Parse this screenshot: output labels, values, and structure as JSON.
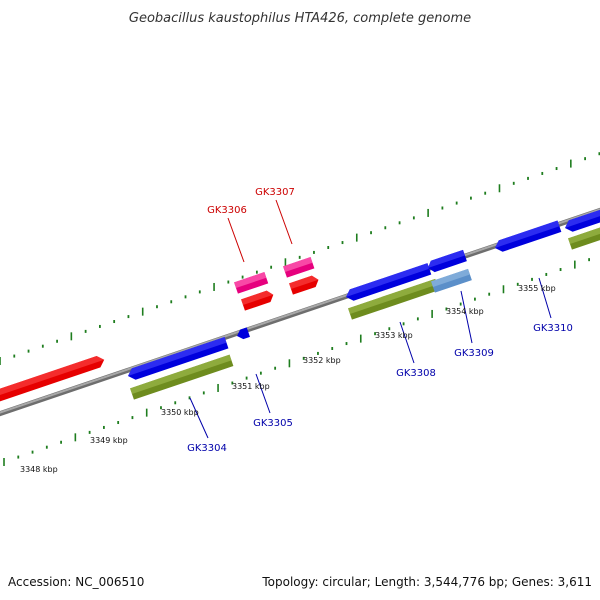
{
  "title": "Geobacillus kaustophilus HTA426, complete genome",
  "footer": {
    "accession": "Accession: NC_006510",
    "summary": "Topology: circular; Length: 3,544,776 bp; Genes: 3,611"
  },
  "colors": {
    "backbone": "#8a8a8a",
    "ticks": "#1e7d1e",
    "forward_gene": "#e60000",
    "forward_rna": "#e6007e",
    "reverse_gene": "#0000dd",
    "reverse_cds": "#6e8c1e",
    "reverse_light": "#5b8fc9",
    "forward_label": "#cc0000",
    "reverse_label": "#0000aa"
  },
  "scale_labels": [
    "3348 kbp",
    "3349 kbp",
    "3350 kbp",
    "3351 kbp",
    "3352 kbp",
    "3353 kbp",
    "3354 kbp",
    "3355 kbp"
  ],
  "gene_labels": [
    {
      "name": "GK3304",
      "strand": "reverse"
    },
    {
      "name": "GK3305",
      "strand": "reverse"
    },
    {
      "name": "GK3306",
      "strand": "forward"
    },
    {
      "name": "GK3307",
      "strand": "forward"
    },
    {
      "name": "GK3308",
      "strand": "reverse"
    },
    {
      "name": "GK3309",
      "strand": "reverse"
    },
    {
      "name": "GK3310",
      "strand": "reverse"
    }
  ]
}
